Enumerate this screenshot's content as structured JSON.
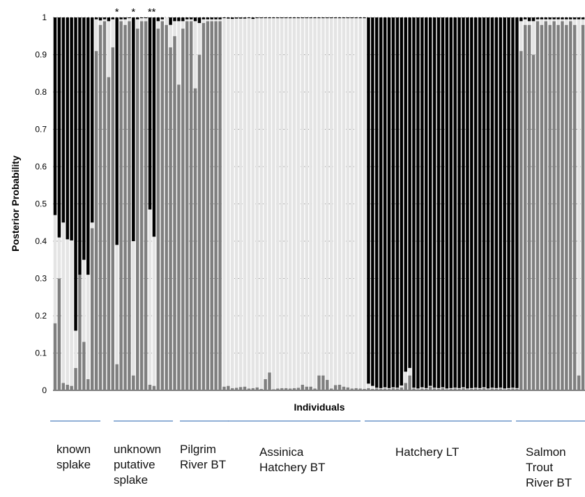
{
  "chart_data": {
    "type": "bar",
    "stacked": true,
    "ylabel": "Posterior Probability",
    "xlabel": "Individuals",
    "ylim": [
      0,
      1
    ],
    "yticks": [
      "0",
      "0.1",
      "0.2",
      "0.3",
      "0.4",
      "0.5",
      "0.6",
      "0.7",
      "0.8",
      "0.9",
      "1"
    ],
    "grid": true,
    "colors": {
      "black": "#000000",
      "white": "#e4e4e4",
      "gray": "#7f7f7f"
    },
    "asterisks": [
      "*",
      "*",
      "**"
    ],
    "groups": [
      {
        "label": "known\nsplake",
        "n": 12
      },
      {
        "label": "unknown\nputative\nsplake",
        "n": 17
      },
      {
        "label": "Pilgrim\nRiver BT",
        "n": 12
      },
      {
        "label": "Assinica\nHatchery BT",
        "n": 35
      },
      {
        "label": "Hatchery LT",
        "n": 37
      },
      {
        "label": "Salmon\nTrout\nRiver BT",
        "n": 16
      }
    ],
    "gray_values": [
      0.18,
      0.3,
      0.02,
      0.015,
      0.012,
      0.06,
      0.31,
      0.13,
      0.03,
      0.435,
      0.91,
      0.98,
      0.99,
      0.84,
      0.92,
      0.07,
      0.99,
      0.98,
      0.99,
      0.04,
      0.97,
      0.99,
      0.99,
      0.015,
      0.012,
      0.97,
      0.99,
      0.98,
      0.92,
      0.95,
      0.82,
      0.97,
      0.99,
      0.99,
      0.81,
      0.9,
      0.985,
      0.99,
      0.99,
      0.99,
      0.99,
      0.01,
      0.012,
      0.006,
      0.007,
      0.009,
      0.01,
      0.005,
      0.006,
      0.008,
      0.004,
      0.03,
      0.048,
      0.003,
      0.005,
      0.006,
      0.006,
      0.005,
      0.006,
      0.007,
      0.015,
      0.01,
      0.01,
      0.005,
      0.04,
      0.04,
      0.028,
      0.005,
      0.014,
      0.015,
      0.01,
      0.008,
      0.005,
      0.006,
      0.005,
      0.004,
      0.006,
      0.004,
      0.005,
      0.004,
      0.005,
      0.004,
      0.006,
      0.005,
      0.008,
      0.02,
      0.04,
      0.005,
      0.003,
      0.005,
      0.004,
      0.01,
      0.005,
      0.004,
      0.006,
      0.003,
      0.004,
      0.005,
      0.004,
      0.006,
      0.003,
      0.004,
      0.005,
      0.004,
      0.006,
      0.003,
      0.005,
      0.004,
      0.005,
      0.003,
      0.004,
      0.005,
      0.004,
      0.91,
      0.98,
      0.98,
      0.9,
      0.99,
      0.98,
      0.99,
      0.98,
      0.99,
      0.98,
      0.99,
      0.98,
      0.99,
      0.98,
      0.04,
      0.98
    ],
    "white_values": [
      0.29,
      0.11,
      0.43,
      0.39,
      0.39,
      0.1,
      0.0,
      0.22,
      0.28,
      0.015,
      0.085,
      0.012,
      0.005,
      0.15,
      0.075,
      0.32,
      0.005,
      0.015,
      0.008,
      0.36,
      0.025,
      0.008,
      0.008,
      0.47,
      0.4,
      0.02,
      0.005,
      0.02,
      0.06,
      0.04,
      0.17,
      0.02,
      0.005,
      0.005,
      0.18,
      0.085,
      0.01,
      0.005,
      0.005,
      0.005,
      0.005,
      0.988,
      0.985,
      0.99,
      0.99,
      0.988,
      0.987,
      0.993,
      0.99,
      0.99,
      0.994,
      0.968,
      0.95,
      0.995,
      0.993,
      0.992,
      0.992,
      0.993,
      0.992,
      0.991,
      0.983,
      0.988,
      0.988,
      0.993,
      0.958,
      0.958,
      0.97,
      0.993,
      0.984,
      0.983,
      0.988,
      0.99,
      0.993,
      0.992,
      0.993,
      0.994,
      0.012,
      0.008,
      0.002,
      0.002,
      0.003,
      0.002,
      0.002,
      0.002,
      0.005,
      0.03,
      0.02,
      0.002,
      0.002,
      0.003,
      0.002,
      0.002,
      0.002,
      0.002,
      0.002,
      0.002,
      0.002,
      0.002,
      0.002,
      0.002,
      0.002,
      0.002,
      0.002,
      0.002,
      0.002,
      0.002,
      0.002,
      0.002,
      0.002,
      0.002,
      0.002,
      0.002,
      0.002,
      0.08,
      0.015,
      0.01,
      0.09,
      0.005,
      0.015,
      0.005,
      0.015,
      0.005,
      0.015,
      0.005,
      0.015,
      0.005,
      0.015,
      0.955,
      0.015
    ]
  }
}
